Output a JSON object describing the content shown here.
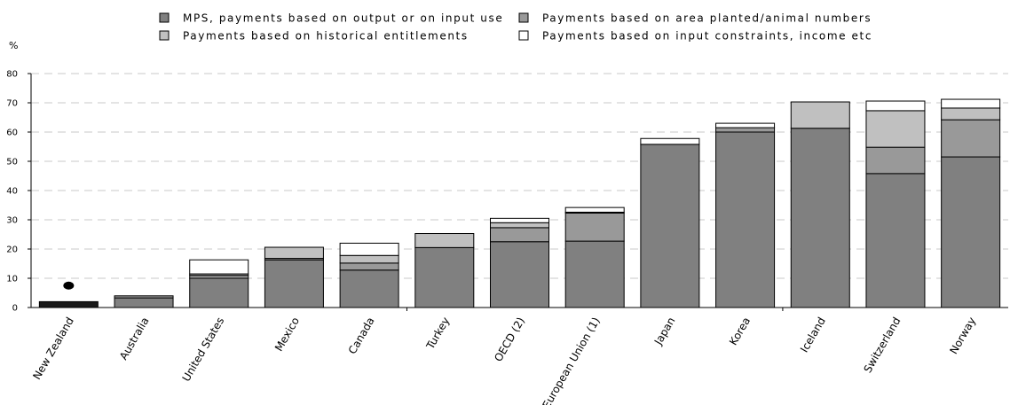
{
  "chart_data": {
    "type": "bar",
    "stacked": true,
    "ylabel": "%",
    "ylim": [
      0,
      80
    ],
    "yticks": [
      0,
      10,
      20,
      30,
      40,
      50,
      60,
      70,
      80
    ],
    "grid": true,
    "legend_position": "top",
    "categories": [
      "New Zealand",
      "Australia",
      "United States",
      "Mexico",
      "Canada",
      "Turkey",
      "OECD (2)",
      "European Union (1)",
      "Japan",
      "Korea",
      "Iceland",
      "Switzerland",
      "Norway"
    ],
    "series": [
      {
        "name": "MPS, payments based on output or on input use",
        "color": "#808080",
        "values": [
          2,
          3.3,
          10,
          16.3,
          12.8,
          20.5,
          22.5,
          22.7,
          55.8,
          60,
          61.3,
          45.8,
          51.5
        ]
      },
      {
        "name": "Payments based on area planted/animal numbers",
        "color": "#999999",
        "values": [
          0,
          0.7,
          1,
          0.5,
          2.4,
          0,
          4.8,
          9.6,
          0,
          1.5,
          0,
          9,
          12.7
        ]
      },
      {
        "name": "Payments based on historical entitlements",
        "color": "#c0c0c0",
        "values": [
          0,
          0,
          0.5,
          3.8,
          2.6,
          4.8,
          1.7,
          0.3,
          0,
          0,
          9,
          12.5,
          4
        ]
      },
      {
        "name": "Payments based on input constraints, income etc",
        "color": "#ffffff",
        "values": [
          0,
          0,
          4.8,
          0,
          4.2,
          0,
          1.5,
          1.6,
          2,
          1.5,
          0,
          3.3,
          3
        ]
      }
    ],
    "new_zealand_bar_color": "#1a1a1a",
    "annotation_marker": {
      "category": "New Zealand",
      "value": 7.5,
      "color": "#000000"
    }
  }
}
